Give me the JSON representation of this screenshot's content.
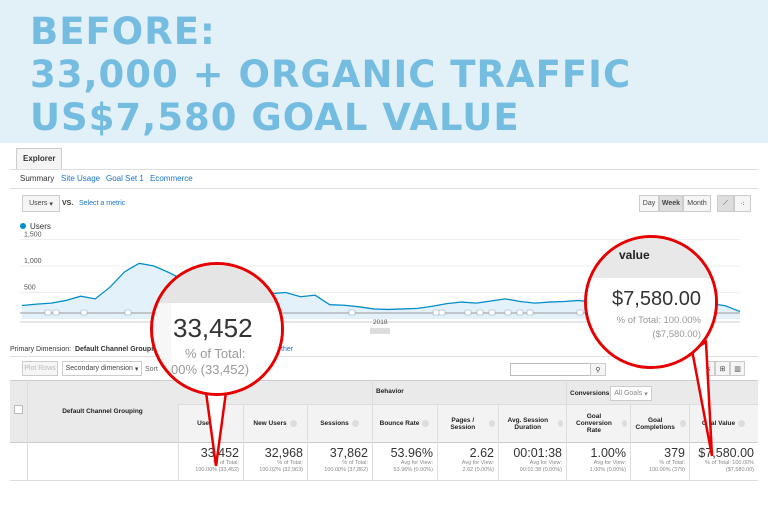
{
  "banner": {
    "line1": "BEFORE:",
    "line2": "33,000 + ORGANIC TRAFFIC",
    "line3": "US$7,580 GOAL VALUE"
  },
  "explorer_tab": "Explorer",
  "subtabs": [
    "Summary",
    "Site Usage",
    "Goal Set 1",
    "Ecommerce"
  ],
  "metric": {
    "selected": "Users",
    "vs": "VS.",
    "select": "Select a metric"
  },
  "period_buttons": [
    "Day",
    "Week",
    "Month"
  ],
  "legend": "Users",
  "chart_data": {
    "type": "area",
    "series": [
      {
        "name": "Users",
        "values": [
          255,
          280,
          300,
          350,
          430,
          380,
          600,
          890,
          1050,
          1000,
          880,
          740,
          700,
          650,
          620,
          600,
          520,
          480,
          500,
          420,
          450,
          270,
          260,
          230,
          190,
          180,
          190,
          200,
          240,
          290,
          320,
          300,
          340,
          380,
          330,
          300,
          320,
          330,
          350,
          310,
          300,
          330,
          360,
          380,
          370,
          380,
          330,
          290,
          250,
          140
        ]
      }
    ],
    "y_ticks": [
      "1,500",
      "1,000",
      "500"
    ],
    "ylim": [
      0,
      1500
    ],
    "x_label": "2018",
    "color": "#058dc7"
  },
  "primary_dimension": {
    "label": "Primary Dimension:",
    "value": "Default Channel Grouping",
    "other": "ther"
  },
  "toolbar": {
    "plot_rows": "Plot Rows",
    "secondary": "Secondary dimension",
    "sort": "Sort"
  },
  "table": {
    "dimension_header": "Default Channel Grouping",
    "group_behavior": "Behavior",
    "group_conversions": "Conversions",
    "goals_select": "All Goals",
    "columns": [
      {
        "label": "Users",
        "value": "33,452",
        "sub1": "% of Total:",
        "sub2": "100.00% (33,452)"
      },
      {
        "label": "New Users",
        "value": "32,968",
        "sub1": "% of Total:",
        "sub2": "100.02% (32,963)"
      },
      {
        "label": "Sessions",
        "value": "37,862",
        "sub1": "% of Total:",
        "sub2": "100.00% (37,862)"
      },
      {
        "label": "Bounce Rate",
        "value": "53.96%",
        "sub1": "Avg for View:",
        "sub2": "53.96% (0.00%)"
      },
      {
        "label": "Pages / Session",
        "value": "2.62",
        "sub1": "Avg for View:",
        "sub2": "2.62 (0.00%)"
      },
      {
        "label": "Avg. Session Duration",
        "value": "00:01:38",
        "sub1": "Avg for View:",
        "sub2": "00:01:38 (0.00%)"
      },
      {
        "label": "Goal Conversion Rate",
        "value": "1.00%",
        "sub1": "Avg for View:",
        "sub2": "1.00% (0.00%)"
      },
      {
        "label": "Goal Completions",
        "value": "379",
        "sub1": "% of Total:",
        "sub2": "100.00% (379)"
      },
      {
        "label": "Goal Value",
        "value": "$7,580.00",
        "sub1": "% of Total: 100.00%",
        "sub2": "($7,580.00)"
      }
    ]
  },
  "callout_users": {
    "value": "33,452",
    "line1": "% of Total:",
    "line2": "00% (33,452)"
  },
  "callout_goal": {
    "header": "value",
    "value": "$7,580.00",
    "line1": "% of Total: 100.00%",
    "line2": "($7,580.00)"
  }
}
